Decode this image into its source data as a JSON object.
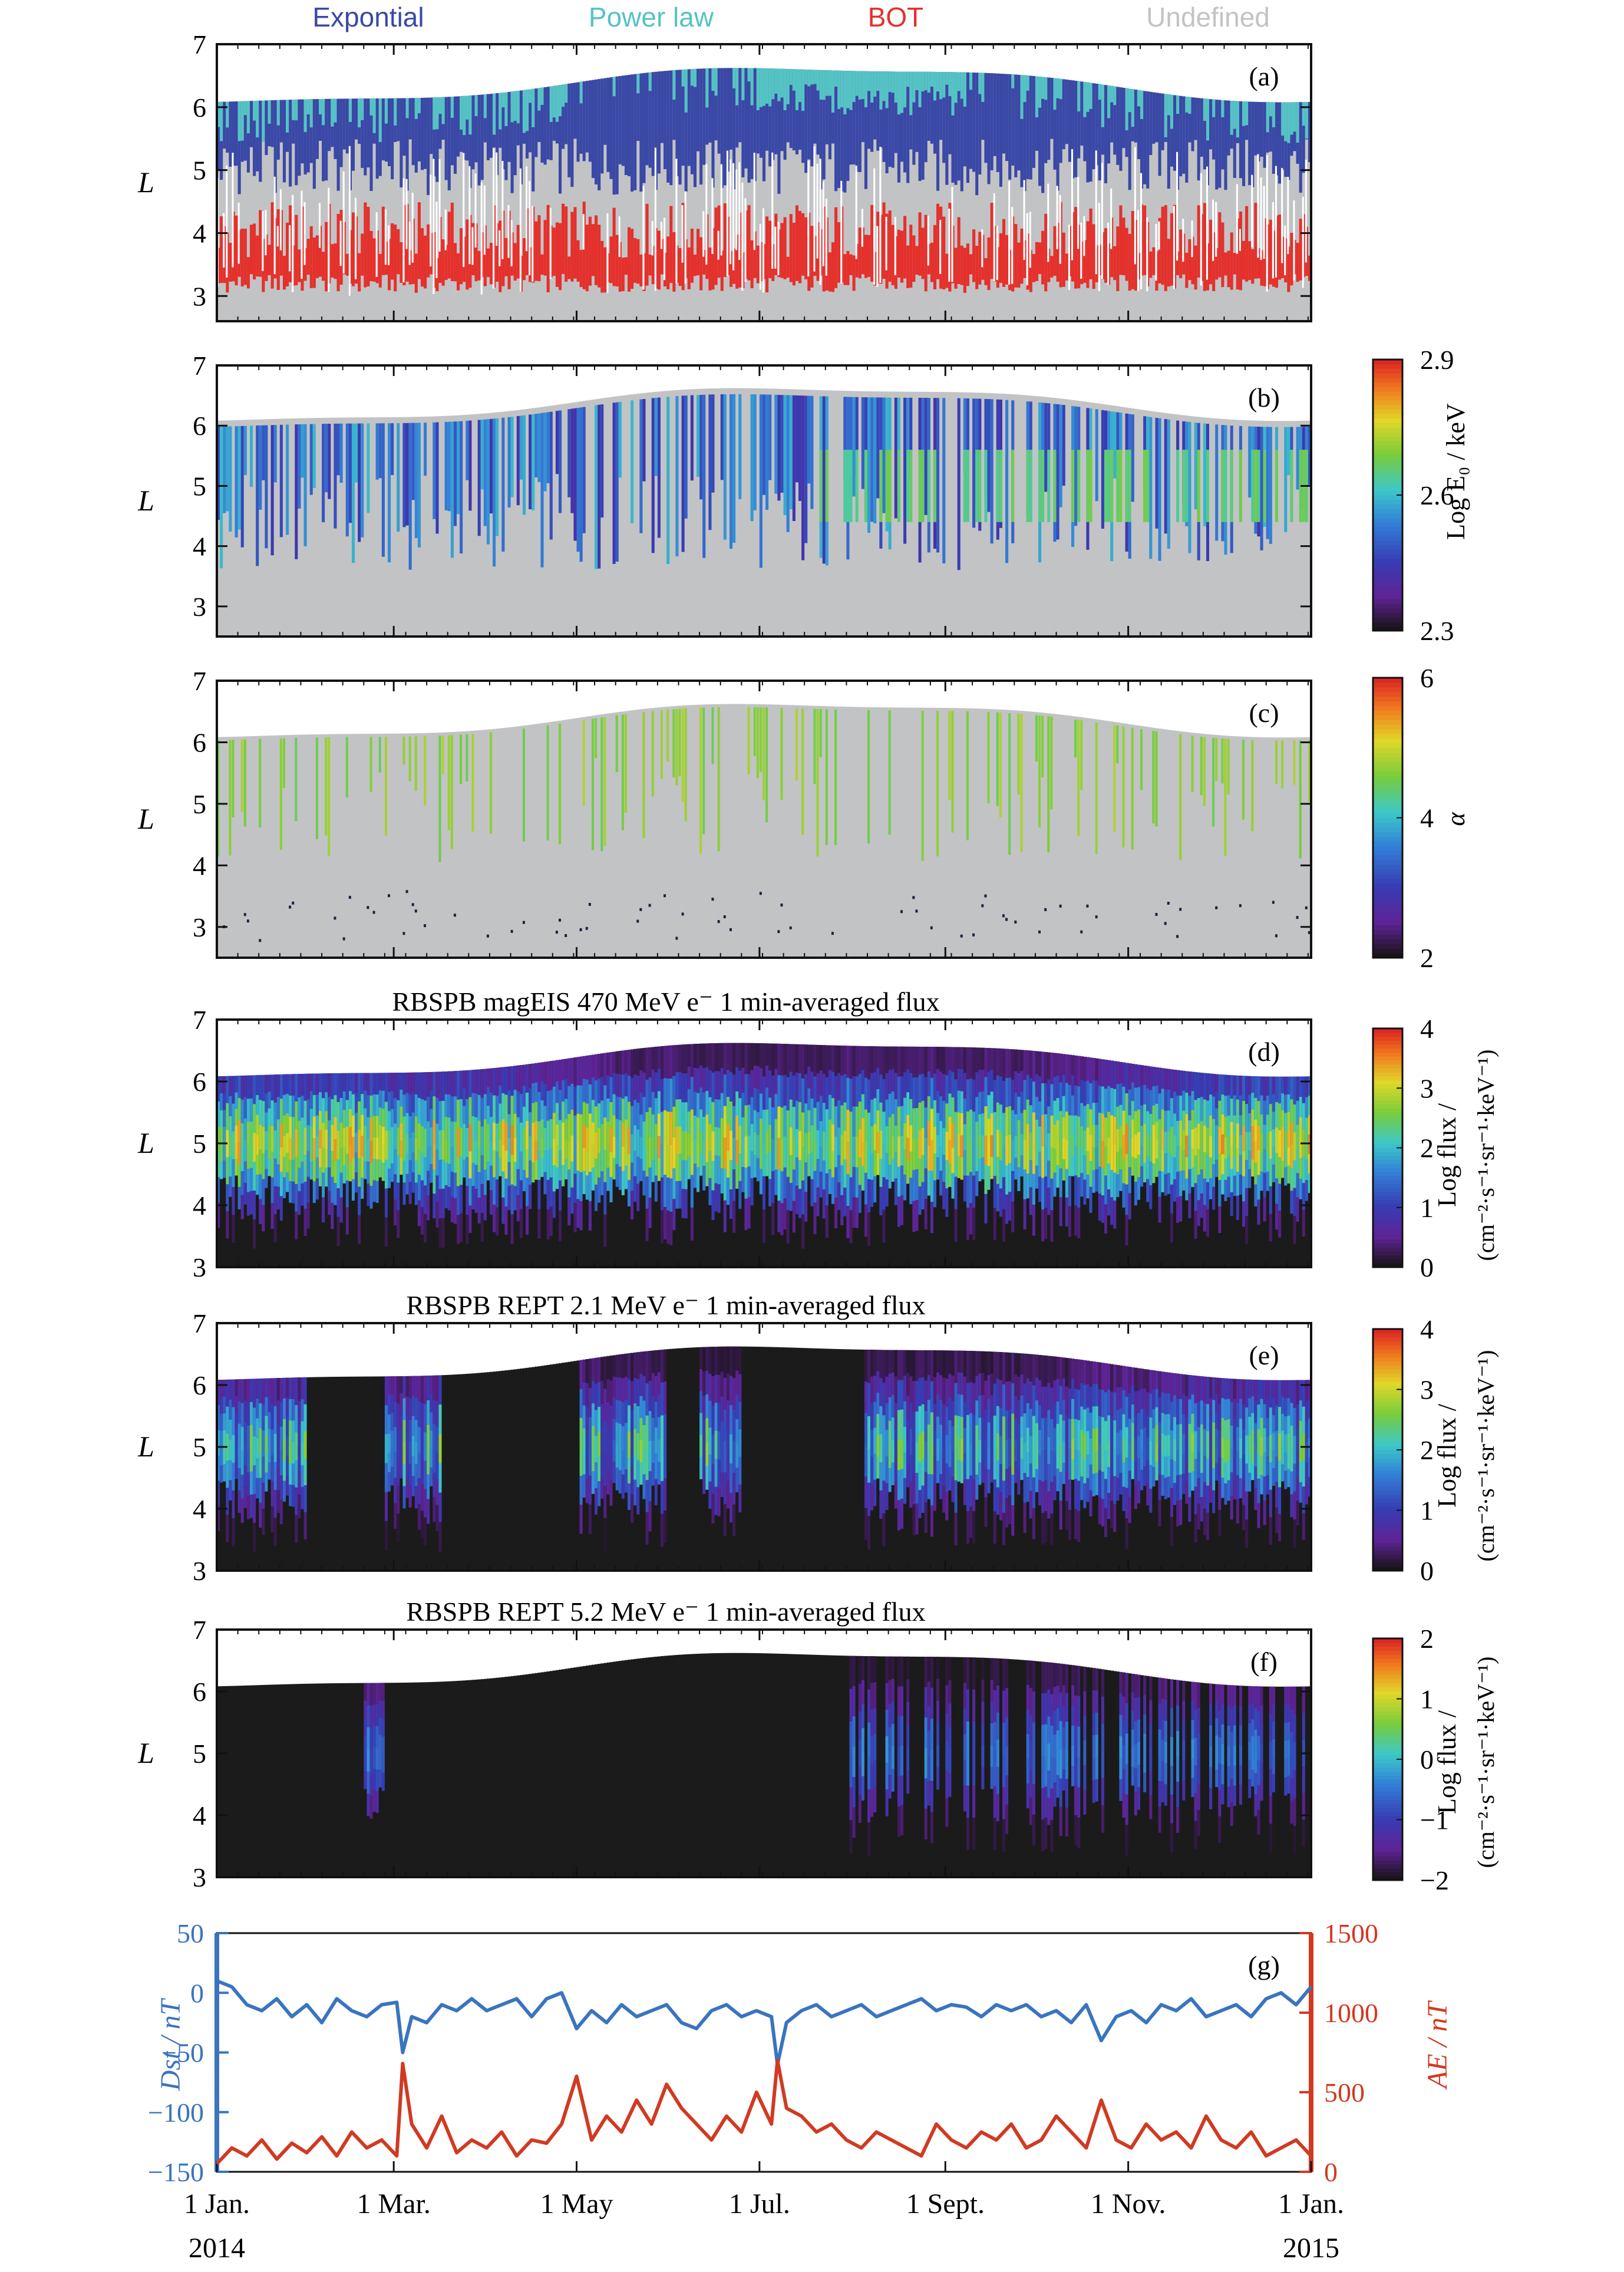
{
  "colors": {
    "exp": "#3a48a6",
    "power": "#55c3c4",
    "bot": "#e4312c",
    "undef": "#c2c3c5",
    "dst": "#3a74bf",
    "ae": "#d13a22"
  },
  "legend": {
    "exp": "Expontial",
    "power": "Power law",
    "bot": "BOT",
    "undef": "Undefined"
  },
  "titles": {
    "d": "RBSPB magEIS 470 MeV e⁻ 1 min-averaged flux",
    "e": "RBSPB REPT 2.1 MeV e⁻ 1 min-averaged flux",
    "f": "RBSPB REPT 5.2 MeV e⁻ 1 min-averaged flux"
  },
  "letters": {
    "a": "(a)",
    "b": "(b)",
    "c": "(c)",
    "d": "(d)",
    "e": "(e)",
    "f": "(f)",
    "g": "(g)"
  },
  "axis": {
    "L": "L"
  },
  "cbar_labels": {
    "b": "Log E₀ / keV",
    "c": "α",
    "flux1": "Log flux /",
    "flux2": "(cm⁻²·s⁻¹·sr⁻¹·keV⁻¹)"
  },
  "g_labels": {
    "dst": "Dst / nT",
    "ae": "AE / nT"
  },
  "xticks": [
    {
      "label": "1 Jan.",
      "year": "2014",
      "day": 0
    },
    {
      "label": "1 Mar.",
      "year": "",
      "day": 59
    },
    {
      "label": "1 May",
      "year": "",
      "day": 120
    },
    {
      "label": "1 Jul.",
      "year": "",
      "day": 181
    },
    {
      "label": "1 Sept.",
      "year": "",
      "day": 243
    },
    {
      "label": "1 Nov.",
      "year": "",
      "day": 304
    },
    {
      "label": "1 Jan.",
      "year": "2015",
      "day": 365
    }
  ],
  "chart_data": [
    {
      "panel": "a",
      "type": "heatmap",
      "ylabel": "L",
      "ylim": [
        2.6,
        7
      ],
      "yticks": [
        3,
        4,
        5,
        6,
        7
      ],
      "categories": [
        "Expontial",
        "Power law",
        "BOT",
        "Undefined"
      ],
      "description_values": "category of spectral shape vs day of 2014 and L"
    },
    {
      "panel": "b",
      "type": "heatmap",
      "ylabel": "L",
      "ylim": [
        2.5,
        7
      ],
      "yticks": [
        3,
        4,
        5,
        6,
        7
      ],
      "colorbar": {
        "label": "Log E0 / keV",
        "range": [
          2.3,
          2.9
        ],
        "ticks": [
          "2.3",
          "2.6",
          "2.9"
        ]
      }
    },
    {
      "panel": "c",
      "type": "heatmap",
      "ylabel": "L",
      "ylim": [
        2.5,
        7
      ],
      "yticks": [
        3,
        4,
        5,
        6,
        7
      ],
      "colorbar": {
        "label": "α",
        "range": [
          2,
          6
        ],
        "ticks": [
          "2",
          "4",
          "6"
        ]
      }
    },
    {
      "panel": "d",
      "type": "heatmap",
      "title": "RBSPB magEIS 470 MeV e⁻ 1 min-averaged flux",
      "ylabel": "L",
      "ylim": [
        3,
        7
      ],
      "yticks": [
        3,
        4,
        5,
        6,
        7
      ],
      "colorbar": {
        "label": "Log flux / (cm⁻²·s⁻¹·sr⁻¹·keV⁻¹)",
        "range": [
          0,
          4
        ],
        "ticks": [
          "0",
          "1",
          "2",
          "3",
          "4"
        ]
      }
    },
    {
      "panel": "e",
      "type": "heatmap",
      "title": "RBSPB REPT 2.1 MeV e⁻ 1 min-averaged flux",
      "ylabel": "L",
      "ylim": [
        3,
        7
      ],
      "yticks": [
        3,
        4,
        5,
        6,
        7
      ],
      "colorbar": {
        "label": "Log flux / (cm⁻²·s⁻¹·sr⁻¹·keV⁻¹)",
        "range": [
          0,
          4
        ],
        "ticks": [
          "0",
          "1",
          "2",
          "3",
          "4"
        ]
      }
    },
    {
      "panel": "f",
      "type": "heatmap",
      "title": "RBSPB REPT 5.2 MeV e⁻ 1 min-averaged flux",
      "ylabel": "L",
      "ylim": [
        3,
        7
      ],
      "yticks": [
        3,
        4,
        5,
        6,
        7
      ],
      "colorbar": {
        "label": "Log flux / (cm⁻²·s⁻¹·sr⁻¹·keV⁻¹)",
        "range": [
          -2,
          2
        ],
        "ticks": [
          "−2",
          "−1",
          "0",
          "1",
          "2"
        ]
      }
    },
    {
      "panel": "g",
      "type": "line",
      "xlim": [
        0,
        365
      ],
      "y_left": {
        "label": "Dst / nT",
        "range": [
          -150,
          50
        ],
        "ticks": [
          "−150",
          "−100",
          "−50",
          "0",
          "50"
        ]
      },
      "y_right": {
        "label": "AE / nT",
        "range": [
          0,
          1500
        ],
        "ticks": [
          "0",
          "500",
          "1000",
          "1500"
        ]
      },
      "series": [
        {
          "name": "Dst",
          "axis": "left",
          "x": [
            0,
            5,
            10,
            15,
            20,
            25,
            30,
            35,
            40,
            45,
            50,
            55,
            60,
            62,
            65,
            70,
            75,
            80,
            85,
            90,
            95,
            100,
            105,
            110,
            115,
            120,
            125,
            130,
            135,
            140,
            145,
            150,
            155,
            160,
            165,
            170,
            175,
            180,
            185,
            187,
            190,
            195,
            200,
            205,
            210,
            215,
            220,
            225,
            230,
            235,
            240,
            245,
            250,
            255,
            260,
            265,
            270,
            275,
            280,
            285,
            290,
            295,
            300,
            305,
            310,
            315,
            320,
            325,
            330,
            335,
            340,
            345,
            350,
            355,
            360,
            365
          ],
          "y": [
            10,
            5,
            -10,
            -15,
            -5,
            -20,
            -10,
            -25,
            -5,
            -15,
            -20,
            -10,
            -8,
            -50,
            -20,
            -25,
            -10,
            -15,
            -5,
            -15,
            -10,
            -5,
            -20,
            -5,
            0,
            -30,
            -15,
            -25,
            -10,
            -20,
            -15,
            -10,
            -25,
            -30,
            -15,
            -10,
            -20,
            -15,
            -20,
            -60,
            -25,
            -15,
            -10,
            -20,
            -15,
            -10,
            -20,
            -15,
            -10,
            -5,
            -15,
            -10,
            -12,
            -20,
            -10,
            -15,
            -10,
            -20,
            -15,
            -25,
            -10,
            -40,
            -20,
            -15,
            -25,
            -10,
            -15,
            -5,
            -20,
            -15,
            -10,
            -20,
            -5,
            0,
            -10,
            5
          ]
        },
        {
          "name": "AE",
          "axis": "right",
          "x": [
            0,
            5,
            10,
            15,
            20,
            25,
            30,
            35,
            40,
            45,
            50,
            55,
            60,
            62,
            65,
            70,
            75,
            80,
            85,
            90,
            95,
            100,
            105,
            110,
            115,
            120,
            125,
            130,
            135,
            140,
            145,
            150,
            155,
            160,
            165,
            170,
            175,
            180,
            185,
            187,
            190,
            195,
            200,
            205,
            210,
            215,
            220,
            225,
            230,
            235,
            240,
            245,
            250,
            255,
            260,
            265,
            270,
            275,
            280,
            285,
            290,
            295,
            300,
            305,
            310,
            315,
            320,
            325,
            330,
            335,
            340,
            345,
            350,
            355,
            360,
            365
          ],
          "y": [
            50,
            150,
            100,
            200,
            80,
            180,
            120,
            220,
            100,
            250,
            150,
            200,
            100,
            680,
            300,
            150,
            350,
            120,
            200,
            150,
            250,
            100,
            200,
            180,
            300,
            600,
            200,
            350,
            250,
            450,
            300,
            550,
            400,
            300,
            200,
            350,
            250,
            500,
            300,
            700,
            400,
            350,
            250,
            300,
            200,
            150,
            250,
            200,
            150,
            100,
            300,
            200,
            150,
            250,
            200,
            300,
            150,
            200,
            350,
            250,
            150,
            450,
            200,
            150,
            300,
            200,
            250,
            150,
            350,
            200,
            150,
            250,
            100,
            150,
            200,
            100
          ]
        }
      ]
    }
  ]
}
